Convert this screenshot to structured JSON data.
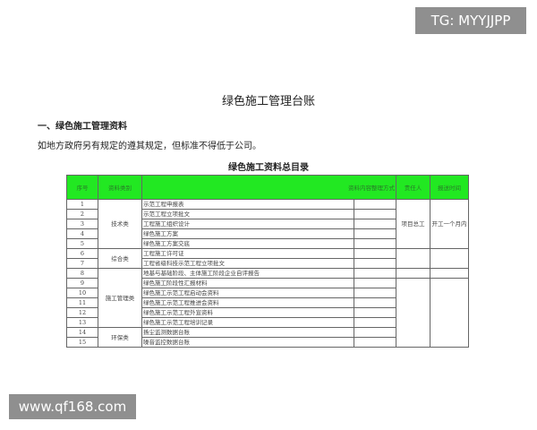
{
  "watermarks": [
    "TG: MYYJJPP",
    "www.qf168.com"
  ],
  "doc_title": "绿色施工管理台账",
  "section_heading": "一、绿色施工管理资料",
  "paragraph": "如地方政府另有规定的遵其规定，但标准不得低于公司。",
  "table_title": "绿色施工资料总目录",
  "header_color": "#22e822",
  "headers": [
    "序号",
    "资料类别",
    "资料内容整理方式",
    "责任人",
    "报送时间"
  ],
  "rows": [
    {
      "no": "1",
      "item": "示范工程申报表"
    },
    {
      "no": "2",
      "item": "示范工程立项批文"
    },
    {
      "no": "3",
      "item": "工程施工组织设计"
    },
    {
      "no": "4",
      "item": "绿色施工方案"
    },
    {
      "no": "5",
      "item": "绿色施工方案交底"
    },
    {
      "no": "6",
      "item": "工程施工许可证"
    },
    {
      "no": "7",
      "item": "工程省级科技示范工程立项批文"
    },
    {
      "no": "8",
      "item": "地基与基础阶段、主体施工阶段企业自评报告"
    },
    {
      "no": "9",
      "item": "绿色施工阶段性汇报材料"
    },
    {
      "no": "10",
      "item": "绿色施工示范工程启动会资料"
    },
    {
      "no": "11",
      "item": "绿色施工示范工程推进会资料"
    },
    {
      "no": "12",
      "item": "绿色施工示范工程外宣资料"
    },
    {
      "no": "13",
      "item": "绿色施工示范工程培训记录"
    },
    {
      "no": "14",
      "item": "扬尘监测数据台账"
    },
    {
      "no": "15",
      "item": "噪音监控数据台账"
    }
  ],
  "categories": [
    "技术类",
    "综合类",
    "施工管理类",
    "环保类"
  ],
  "responsible": "项目总工",
  "deadline": "开工一个月内"
}
